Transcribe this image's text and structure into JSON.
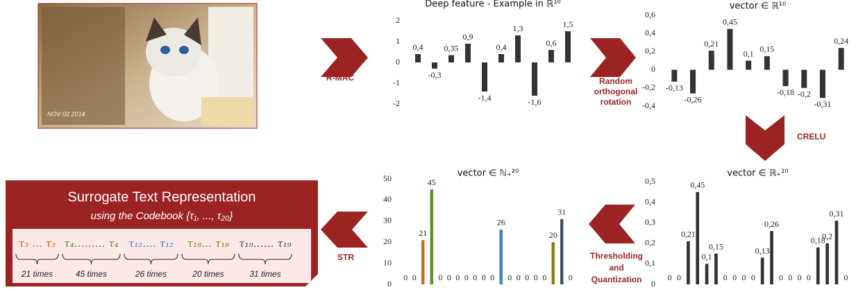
{
  "image": {
    "date": "NOV 02 2014"
  },
  "arrows": [
    {
      "label": [
        "R-MAC"
      ]
    },
    {
      "label": [
        "Random",
        "orthogonal",
        "rotation"
      ]
    },
    {
      "label": [
        "CRELU"
      ]
    },
    {
      "label": [
        "Thresholding",
        "and",
        "Quantization"
      ]
    },
    {
      "label": [
        "STR"
      ]
    }
  ],
  "chart_data": [
    {
      "type": "bar",
      "title": "Deep feature - Example in ℝ¹⁰",
      "color": "#333333",
      "values": [
        0.4,
        -0.3,
        0.35,
        0.9,
        -1.4,
        0.4,
        1.3,
        -1.6,
        0.6,
        1.5
      ],
      "value_labels": [
        "0,4",
        "-0,3",
        "0,35",
        "0,9",
        "-1,4",
        "0,4",
        "1,3",
        "-1,6",
        "0,6",
        "1,5"
      ],
      "ylim": [
        -2,
        2
      ],
      "yticks": [
        -2,
        -1,
        0,
        1,
        2
      ]
    },
    {
      "type": "bar",
      "title": "vector ∈ ℝ¹⁰",
      "color": "#333333",
      "values": [
        -0.13,
        -0.26,
        0.21,
        0.45,
        0.1,
        0.15,
        -0.18,
        -0.2,
        -0.31,
        0.24
      ],
      "value_labels": [
        "-0,13",
        "-0,26",
        "0,21",
        "0,45",
        "0,1",
        "0,15",
        "-0,18",
        "-0,2",
        "-0,31",
        "0,24"
      ],
      "ylim": [
        -0.4,
        0.6
      ],
      "yticks": [
        {
          "value": -0.4,
          "label": "-0,4"
        },
        {
          "value": -0.2,
          "label": "-0,2"
        },
        0,
        {
          "value": 0.2,
          "label": "0,2"
        },
        {
          "value": 0.4,
          "label": "0,4"
        },
        {
          "value": 0.6,
          "label": "0,6"
        }
      ]
    },
    {
      "type": "bar",
      "title": "vector ∈ ℝ₊²⁰",
      "color": "#333333",
      "values": [
        0,
        0,
        0.21,
        0.45,
        0.1,
        0.15,
        0,
        0,
        0,
        0,
        0.13,
        0.26,
        0,
        0,
        0,
        0,
        0.18,
        0.2,
        0.31,
        0
      ],
      "value_labels": [
        "0",
        "0",
        "0,21",
        "0,45",
        "0,1",
        "0,15",
        "0",
        "0",
        "0",
        "0",
        "0,13",
        "0,26",
        "0",
        "0",
        "0",
        "0",
        "0,18",
        "0,2",
        "0,31",
        "0"
      ],
      "ylim": [
        0,
        0.5
      ],
      "yticks": [
        0,
        {
          "value": 0.1,
          "label": "0,1"
        },
        {
          "value": 0.2,
          "label": "0,2"
        },
        {
          "value": 0.3,
          "label": "0,3"
        },
        {
          "value": 0.4,
          "label": "0,4"
        },
        {
          "value": 0.5,
          "label": "0,5"
        }
      ]
    },
    {
      "type": "bar",
      "title": "vector ∈ ℕ₊²⁰",
      "values": [
        0,
        0,
        21,
        45,
        0,
        0,
        0,
        0,
        0,
        0,
        0,
        26,
        0,
        0,
        0,
        0,
        0,
        20,
        31,
        0
      ],
      "colors": [
        "#333333",
        "#333333",
        "#d0681f",
        "#5b8c2a",
        "#333333",
        "#333333",
        "#333333",
        "#333333",
        "#333333",
        "#333333",
        "#333333",
        "#3a7fc1",
        "#333333",
        "#333333",
        "#333333",
        "#333333",
        "#333333",
        "#8c7a14",
        "#3f4e63",
        "#333333"
      ],
      "ylim": [
        0,
        50
      ],
      "yticks": [
        0,
        10,
        20,
        30,
        40,
        50
      ]
    }
  ],
  "str_box": {
    "title": "Surrogate Text Representation",
    "subtitle": "using the Codebook {τ₁, ..., τ₂₀}",
    "groups": [
      {
        "tokens": "τ₃ … τ₃",
        "count": "21 times",
        "color": "#d0681f"
      },
      {
        "tokens": "τ₄……… τ₄",
        "count": "45 times",
        "color": "#5b8c2a"
      },
      {
        "tokens": "τ₁₂…. τ₁₂",
        "count": "26 times",
        "color": "#3a7fc1"
      },
      {
        "tokens": "τ₁₈… τ₁₈",
        "count": "20 times",
        "color": "#8c7a14"
      },
      {
        "tokens": "τ₁₉…… τ₁₉",
        "count": "31 times",
        "color": "#3f4e63"
      }
    ]
  }
}
